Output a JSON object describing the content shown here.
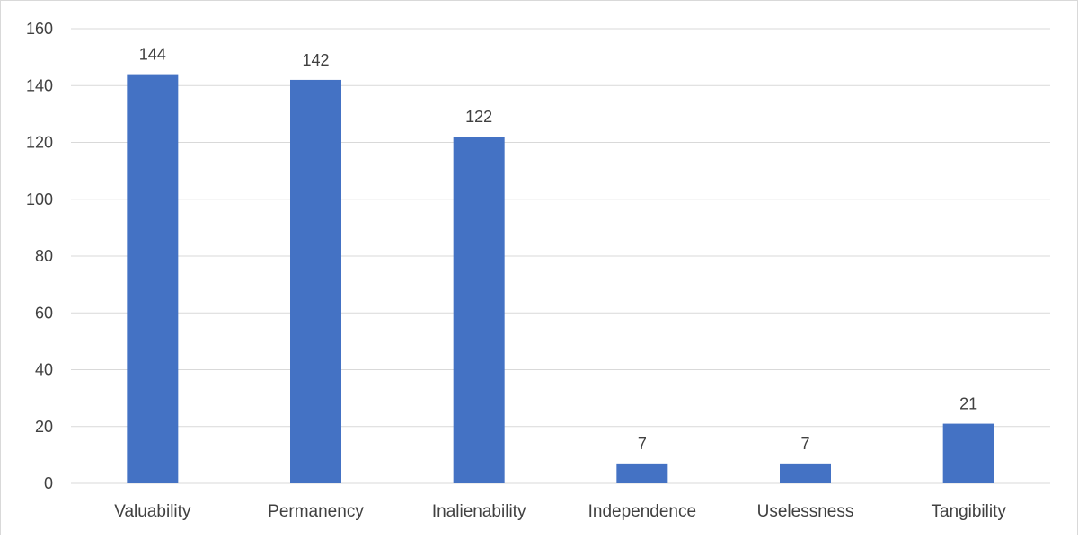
{
  "chart_data": {
    "type": "bar",
    "title": "",
    "xlabel": "",
    "ylabel": "",
    "categories": [
      "Valuability",
      "Permanency",
      "Inalienability",
      "Independence",
      "Uselessness",
      "Tangibility"
    ],
    "values": [
      144,
      142,
      122,
      7,
      7,
      21
    ],
    "data_labels": [
      "144",
      "142",
      "122",
      "7",
      "7",
      "21"
    ],
    "ylim": [
      0,
      160
    ],
    "yticks": [
      0,
      20,
      40,
      60,
      80,
      100,
      120,
      140,
      160
    ],
    "ytick_labels": [
      "0",
      "20",
      "40",
      "60",
      "80",
      "100",
      "120",
      "140",
      "160"
    ],
    "grid": true,
    "legend": "none",
    "bar_color": "#4472C4",
    "grid_color": "#d9d9d9"
  }
}
